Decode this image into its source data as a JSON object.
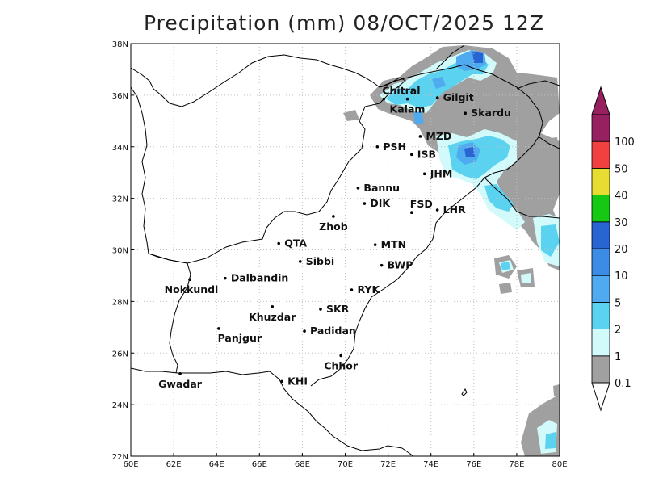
{
  "title": "Precipitation (mm) 08/OCT/2025 12Z",
  "map": {
    "lon_range": [
      60,
      80
    ],
    "lat_range": [
      22,
      38
    ],
    "lon_ticks": [
      "60E",
      "62E",
      "64E",
      "66E",
      "68E",
      "70E",
      "72E",
      "74E",
      "76E",
      "78E",
      "80E"
    ],
    "lat_ticks": [
      "22N",
      "24N",
      "26N",
      "28N",
      "30N",
      "32N",
      "34N",
      "36N",
      "38N"
    ],
    "gridlines": true
  },
  "cities": [
    {
      "name": "Chitral",
      "lon": 71.8,
      "lat": 35.85,
      "label_pos": "right-up"
    },
    {
      "name": "Gilgit",
      "lon": 74.3,
      "lat": 35.9,
      "label_pos": "right"
    },
    {
      "name": "Kalam",
      "lon": 72.9,
      "lat": 35.85,
      "label_pos": "below"
    },
    {
      "name": "Skardu",
      "lon": 75.6,
      "lat": 35.3,
      "label_pos": "right"
    },
    {
      "name": "MZD",
      "lon": 73.5,
      "lat": 34.4,
      "label_pos": "right"
    },
    {
      "name": "PSH",
      "lon": 71.5,
      "lat": 34.0,
      "label_pos": "right"
    },
    {
      "name": "ISB",
      "lon": 73.1,
      "lat": 33.7,
      "label_pos": "right"
    },
    {
      "name": "JHM",
      "lon": 73.7,
      "lat": 32.95,
      "label_pos": "right"
    },
    {
      "name": "Bannu",
      "lon": 70.6,
      "lat": 32.4,
      "label_pos": "right"
    },
    {
      "name": "DIK",
      "lon": 70.9,
      "lat": 31.8,
      "label_pos": "right"
    },
    {
      "name": "FSD",
      "lon": 73.1,
      "lat": 31.45,
      "label_pos": "right-up"
    },
    {
      "name": "LHR",
      "lon": 74.3,
      "lat": 31.55,
      "label_pos": "right"
    },
    {
      "name": "Zhob",
      "lon": 69.45,
      "lat": 31.3,
      "label_pos": "below"
    },
    {
      "name": "QTA",
      "lon": 66.9,
      "lat": 30.25,
      "label_pos": "right"
    },
    {
      "name": "MTN",
      "lon": 71.4,
      "lat": 30.2,
      "label_pos": "right"
    },
    {
      "name": "Sibbi",
      "lon": 67.9,
      "lat": 29.55,
      "label_pos": "right"
    },
    {
      "name": "BWP",
      "lon": 71.7,
      "lat": 29.4,
      "label_pos": "right"
    },
    {
      "name": "Dalbandin",
      "lon": 64.4,
      "lat": 28.9,
      "label_pos": "right"
    },
    {
      "name": "Nokkundi",
      "lon": 62.75,
      "lat": 28.85,
      "label_pos": "below-left"
    },
    {
      "name": "RYK",
      "lon": 70.3,
      "lat": 28.45,
      "label_pos": "right"
    },
    {
      "name": "Khuzdar",
      "lon": 66.6,
      "lat": 27.8,
      "label_pos": "below"
    },
    {
      "name": "SKR",
      "lon": 68.85,
      "lat": 27.7,
      "label_pos": "right"
    },
    {
      "name": "Panjgur",
      "lon": 64.1,
      "lat": 26.95,
      "label_pos": "below-right"
    },
    {
      "name": "Padidan",
      "lon": 68.1,
      "lat": 26.85,
      "label_pos": "right"
    },
    {
      "name": "Chhor",
      "lon": 69.8,
      "lat": 25.9,
      "label_pos": "below"
    },
    {
      "name": "KHI",
      "lon": 67.05,
      "lat": 24.9,
      "label_pos": "right"
    },
    {
      "name": "Gwadar",
      "lon": 62.3,
      "lat": 25.2,
      "label_pos": "below"
    }
  ],
  "colorbar": {
    "levels": [
      "0.1",
      "1",
      "2",
      "5",
      "10",
      "20",
      "30",
      "40",
      "50",
      "100"
    ],
    "colors": [
      "#a0a0a0",
      "#d2fafa",
      "#5ad2f0",
      "#50aaf0",
      "#3c8ce6",
      "#2864d2",
      "#14c814",
      "#e6dc32",
      "#f04040",
      "#962060"
    ],
    "lower_arrow_color": "#ffffff",
    "upper_arrow_color": "#962060"
  },
  "colors": {
    "frame": "#000000",
    "grid": "#c0c0c0",
    "borders": "#000000",
    "rain_gray": "#a0a0a0",
    "rain_light": "#d2fafa",
    "rain_cyan": "#5ad2f0",
    "rain_blue": "#50aaf0",
    "rain_dark": "#2864d2"
  }
}
